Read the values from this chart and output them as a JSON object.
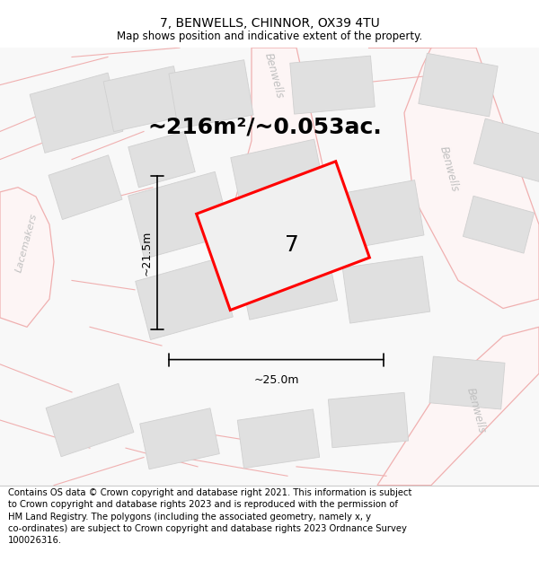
{
  "title": "7, BENWELLS, CHINNOR, OX39 4TU",
  "subtitle": "Map shows position and indicative extent of the property.",
  "area_text": "~216m²/~0.053ac.",
  "label_7": "7",
  "dim_height": "~21.5m",
  "dim_width": "~25.0m",
  "footer": "Contains OS data © Crown copyright and database right 2021. This information is subject\nto Crown copyright and database rights 2023 and is reproduced with the permission of\nHM Land Registry. The polygons (including the associated geometry, namely x, y\nco-ordinates) are subject to Crown copyright and database rights 2023 Ordnance Survey\n100026316.",
  "bg_color": "#ffffff",
  "map_bg": "#f5f5f5",
  "road_color": "#f0b0b0",
  "building_color": "#e0e0e0",
  "building_edge": "#d0d0d0",
  "plot_color": "#eeeeee",
  "plot_edge": "#ff0000",
  "road_label_color": "#c0c0c0",
  "title_fontsize": 10,
  "subtitle_fontsize": 8.5,
  "area_fontsize": 18,
  "label_fontsize": 18,
  "dim_fontsize": 9,
  "footer_fontsize": 7.2
}
